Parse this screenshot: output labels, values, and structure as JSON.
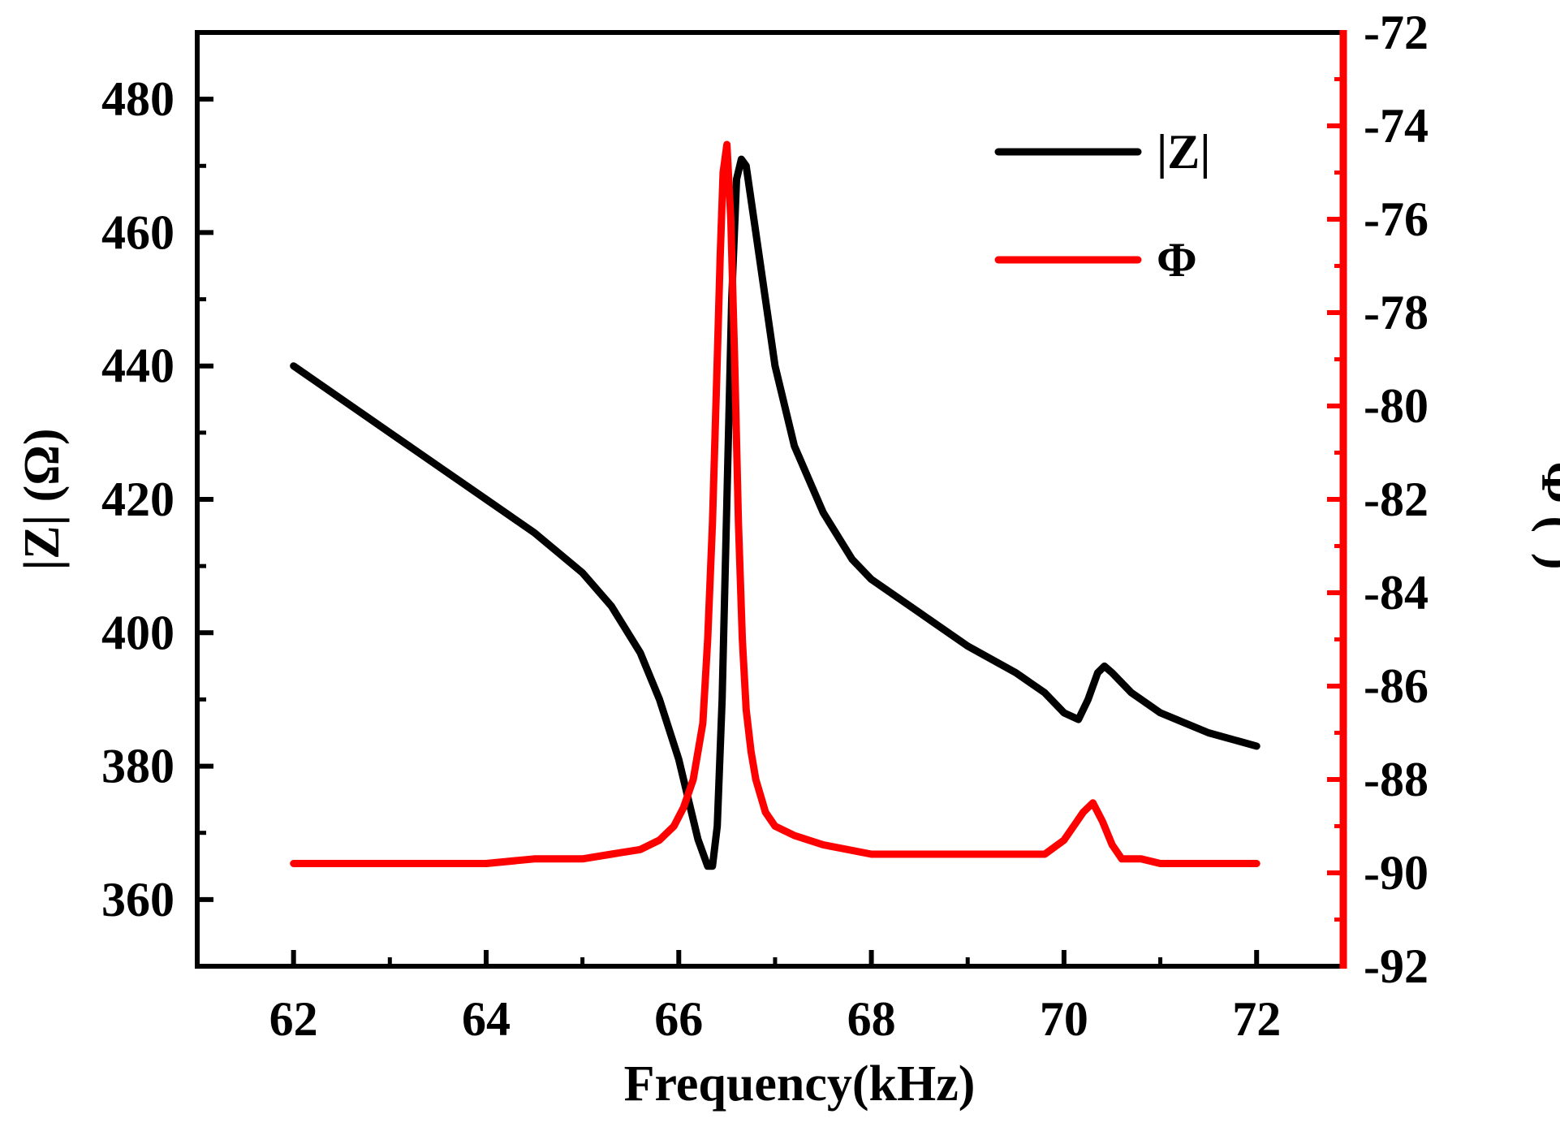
{
  "chart_data": {
    "type": "line",
    "title": "",
    "xlabel": "Frequency(kHz)",
    "ylabel_left": "|Z| (Ω)",
    "ylabel_right": "Φ (°)",
    "xlim": [
      61,
      72.9
    ],
    "ylim_left": [
      350,
      490
    ],
    "ylim_right": [
      -92,
      -72
    ],
    "x_ticks": [
      62,
      64,
      66,
      68,
      70,
      72
    ],
    "y_left_ticks": [
      360,
      380,
      400,
      420,
      440,
      460,
      480
    ],
    "y_right_ticks": [
      -92,
      -90,
      -88,
      -86,
      -84,
      -82,
      -80,
      -78,
      -76,
      -74,
      -72
    ],
    "x_tick_labels": [
      "62",
      "64",
      "66",
      "68",
      "70",
      "72"
    ],
    "y_left_tick_labels": [
      "360",
      "380",
      "400",
      "420",
      "440",
      "460",
      "480"
    ],
    "y_right_tick_labels": [
      "-92",
      "-90",
      "-88",
      "-86",
      "-84",
      "-82",
      "-80",
      "-78",
      "-76",
      "-74",
      "-72"
    ],
    "legend_position": "top-right",
    "grid": false,
    "series": [
      {
        "name": "|Z|",
        "axis": "left",
        "color": "#000000",
        "x": [
          62.0,
          62.5,
          63.0,
          63.5,
          64.0,
          64.5,
          65.0,
          65.3,
          65.6,
          65.8,
          66.0,
          66.1,
          66.2,
          66.3,
          66.35,
          66.4,
          66.45,
          66.5,
          66.55,
          66.6,
          66.65,
          66.7,
          66.8,
          67.0,
          67.2,
          67.5,
          67.8,
          68.0,
          68.5,
          69.0,
          69.5,
          69.8,
          70.0,
          70.15,
          70.25,
          70.35,
          70.42,
          70.5,
          70.7,
          71.0,
          71.5,
          72.0
        ],
        "values": [
          440,
          435,
          430,
          425,
          420,
          415,
          409,
          404,
          397,
          390,
          381,
          375,
          369,
          365,
          365,
          371,
          390,
          420,
          450,
          468,
          471,
          470,
          460,
          440,
          428,
          418,
          411,
          408,
          403,
          398,
          394,
          391,
          388,
          387,
          390,
          394,
          395,
          394,
          391,
          388,
          385,
          383
        ]
      },
      {
        "name": "Φ",
        "axis": "right",
        "color": "#ff0000",
        "x": [
          62.0,
          63.0,
          64.0,
          64.5,
          65.0,
          65.3,
          65.6,
          65.8,
          65.95,
          66.05,
          66.15,
          66.25,
          66.3,
          66.35,
          66.4,
          66.43,
          66.46,
          66.5,
          66.54,
          66.58,
          66.62,
          66.66,
          66.7,
          66.75,
          66.8,
          66.9,
          67.0,
          67.2,
          67.5,
          68.0,
          68.5,
          69.0,
          69.5,
          69.8,
          70.0,
          70.1,
          70.2,
          70.3,
          70.4,
          70.5,
          70.6,
          70.8,
          71.0,
          71.5,
          72.0
        ],
        "values": [
          -89.8,
          -89.8,
          -89.8,
          -89.7,
          -89.7,
          -89.6,
          -89.5,
          -89.3,
          -89.0,
          -88.6,
          -88.0,
          -86.8,
          -85.0,
          -82.5,
          -79.0,
          -76.8,
          -75.0,
          -74.4,
          -76.0,
          -79.0,
          -82.5,
          -85.0,
          -86.5,
          -87.4,
          -88.0,
          -88.7,
          -89.0,
          -89.2,
          -89.4,
          -89.6,
          -89.6,
          -89.6,
          -89.6,
          -89.6,
          -89.3,
          -89.0,
          -88.7,
          -88.5,
          -88.9,
          -89.4,
          -89.7,
          -89.7,
          -89.8,
          -89.8,
          -89.8
        ]
      }
    ]
  }
}
